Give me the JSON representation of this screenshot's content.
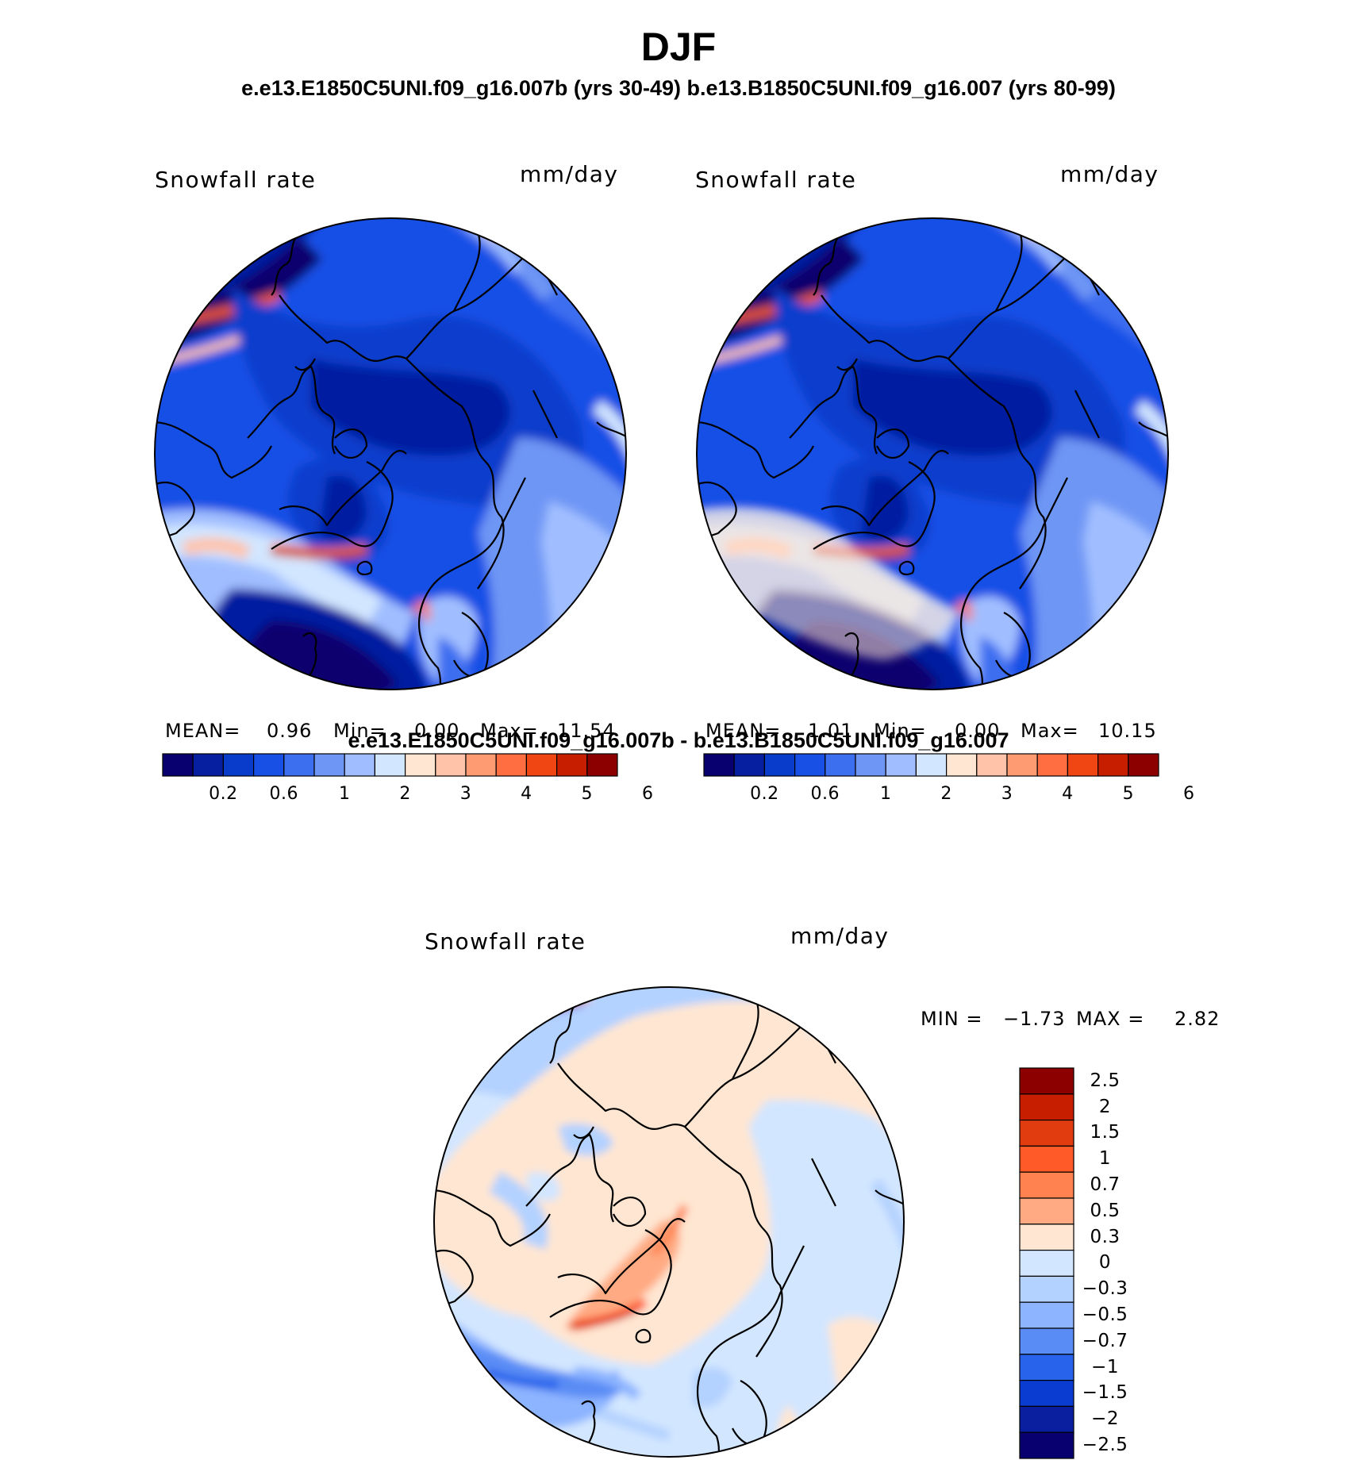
{
  "header": {
    "season": "DJF",
    "cases_line": "e.e13.E1850C5UNI.f09_g16.007b (yrs 30-49)  b.e13.B1850C5UNI.f09_g16.007 (yrs 80-99)",
    "diff_title": "e.e13.E1850C5UNI.f09_g16.007b - b.e13.B1850C5UNI.f09_g16.007"
  },
  "panels": [
    {
      "variable": "Snowfall rate",
      "units": "mm/day",
      "mean_label": "MEAN=",
      "mean": "0.96",
      "min_label": "Min=",
      "min": "0.00",
      "max_label": "Max=",
      "max": "11.54"
    },
    {
      "variable": "Snowfall rate",
      "units": "mm/day",
      "mean_label": "MEAN=",
      "mean": "1.01",
      "min_label": "Min=",
      "min": "0.00",
      "max_label": "Max=",
      "max": "10.15"
    }
  ],
  "abs_colorbar": {
    "colors": [
      "#08006e",
      "#061ea0",
      "#0a3ccc",
      "#1850e6",
      "#3c6ef0",
      "#6e96f5",
      "#a0beff",
      "#d2e6ff",
      "#ffe6d2",
      "#ffc3aa",
      "#ff9b73",
      "#ff6e41",
      "#f04614",
      "#c81e00",
      "#8c0000"
    ],
    "tick_labels": [
      "0.2",
      "0.6",
      "1",
      "2",
      "3",
      "4",
      "5",
      "6"
    ]
  },
  "diff_panel": {
    "variable": "Snowfall rate",
    "units": "mm/day",
    "min_label": "MIN =",
    "min": "−1.73",
    "max_label": "MAX =",
    "max": "2.82",
    "colors_top_to_bottom": [
      "#8c0000",
      "#c81e00",
      "#e03c10",
      "#ff5a28",
      "#ff8250",
      "#ffaa82",
      "#ffe6d2",
      "#d2e6ff",
      "#b4d2ff",
      "#8cb4ff",
      "#5a8cf5",
      "#2864eb",
      "#0a3cd2",
      "#0a1ea0",
      "#08006e"
    ],
    "tick_labels": [
      "2.5",
      "2",
      "1.5",
      "1",
      "0.7",
      "0.5",
      "0.3",
      "0",
      "−0.3",
      "−0.5",
      "−0.7",
      "−1",
      "−1.5",
      "−2",
      "−2.5"
    ]
  }
}
